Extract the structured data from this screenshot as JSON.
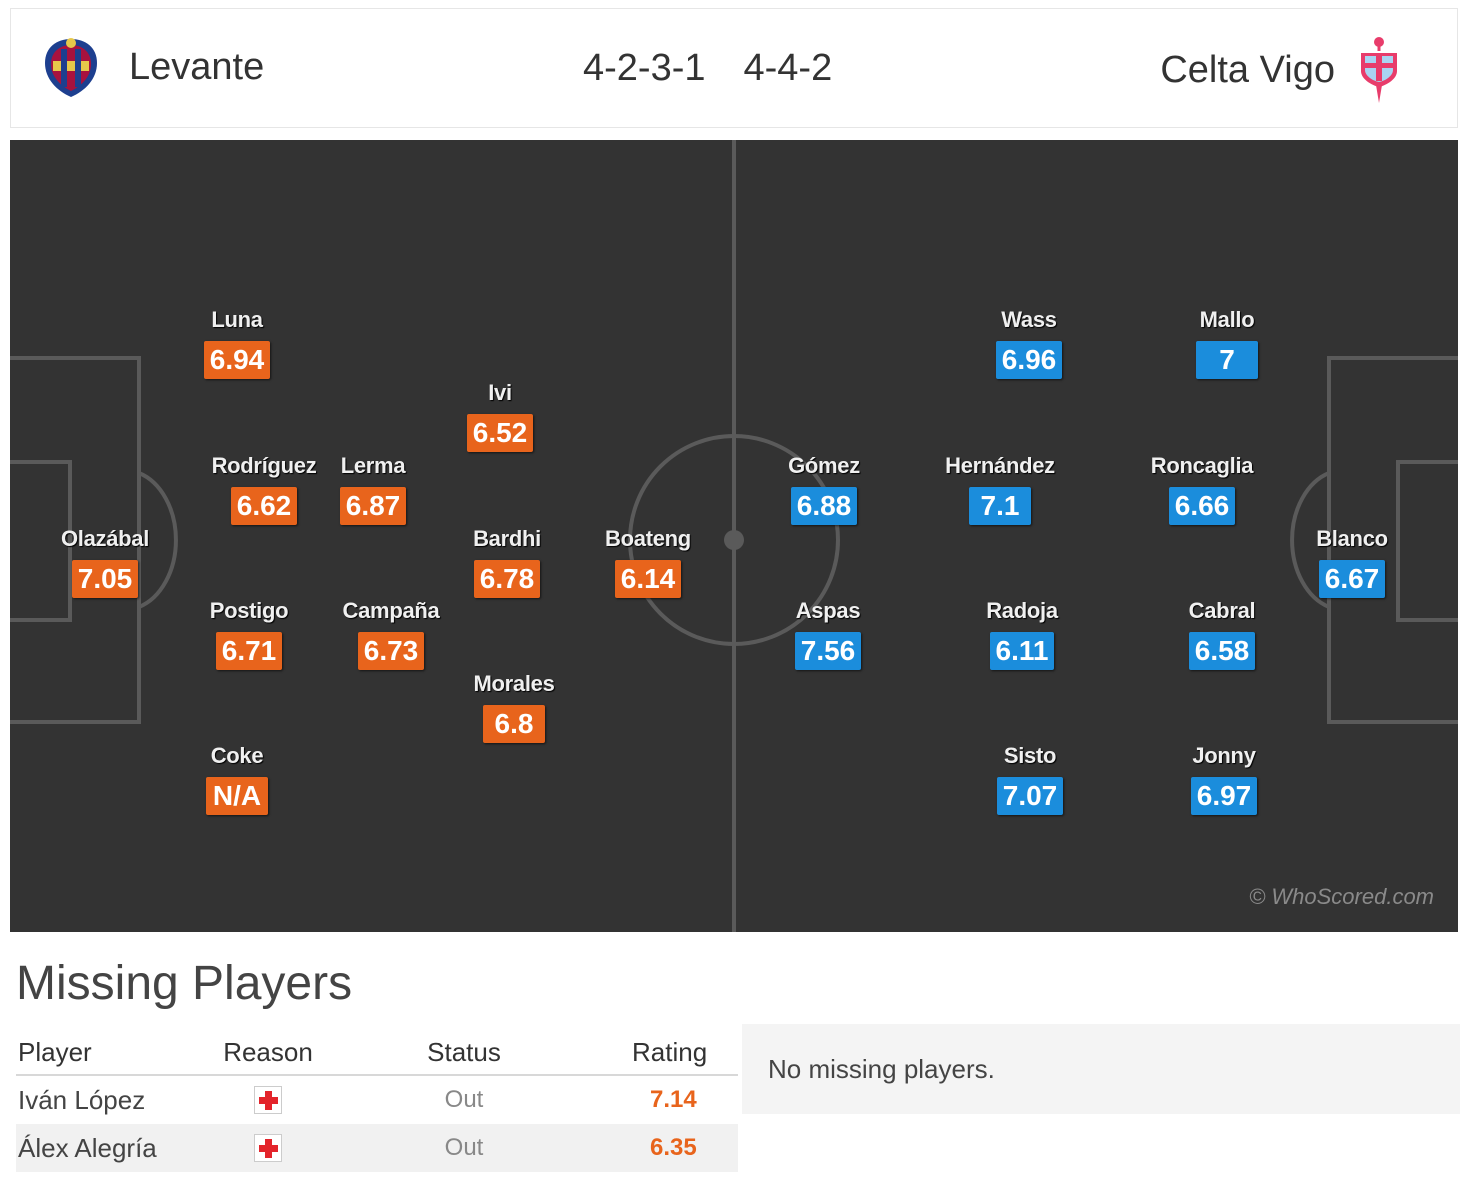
{
  "header": {
    "home_team": "Levante",
    "away_team": "Celta Vigo",
    "home_formation": "4-2-3-1",
    "away_formation": "4-4-2",
    "home_crest_icon": "levante-crest-icon",
    "away_crest_icon": "celta-vigo-crest-icon"
  },
  "colors": {
    "home_rating": "#e8641c",
    "away_rating": "#1b8ddc",
    "pitch": "#333333"
  },
  "home_players": [
    {
      "name": "Olazábal",
      "rating": "7.05"
    },
    {
      "name": "Luna",
      "rating": "6.94"
    },
    {
      "name": "Rodríguez",
      "rating": "6.62"
    },
    {
      "name": "Postigo",
      "rating": "6.71"
    },
    {
      "name": "Coke",
      "rating": "N/A"
    },
    {
      "name": "Lerma",
      "rating": "6.87"
    },
    {
      "name": "Campaña",
      "rating": "6.73"
    },
    {
      "name": "Ivi",
      "rating": "6.52"
    },
    {
      "name": "Bardhi",
      "rating": "6.78"
    },
    {
      "name": "Morales",
      "rating": "6.8"
    },
    {
      "name": "Boateng",
      "rating": "6.14"
    }
  ],
  "away_players": [
    {
      "name": "Blanco",
      "rating": "6.67"
    },
    {
      "name": "Mallo",
      "rating": "7"
    },
    {
      "name": "Roncaglia",
      "rating": "6.66"
    },
    {
      "name": "Cabral",
      "rating": "6.58"
    },
    {
      "name": "Jonny",
      "rating": "6.97"
    },
    {
      "name": "Wass",
      "rating": "6.96"
    },
    {
      "name": "Hernández",
      "rating": "7.1"
    },
    {
      "name": "Radoja",
      "rating": "6.11"
    },
    {
      "name": "Sisto",
      "rating": "7.07"
    },
    {
      "name": "Gómez",
      "rating": "6.88"
    },
    {
      "name": "Aspas",
      "rating": "7.56"
    }
  ],
  "watermark": "© WhoScored.com",
  "missing": {
    "title": "Missing Players",
    "columns": {
      "player": "Player",
      "reason": "Reason",
      "status": "Status",
      "rating": "Rating"
    },
    "rows": [
      {
        "player": "Iván López",
        "reason_icon": "injury-icon",
        "status": "Out",
        "rating": "7.14"
      },
      {
        "player": "Álex Alegría",
        "reason_icon": "injury-icon",
        "status": "Out",
        "rating": "6.35"
      }
    ],
    "away_message": "No missing players."
  }
}
